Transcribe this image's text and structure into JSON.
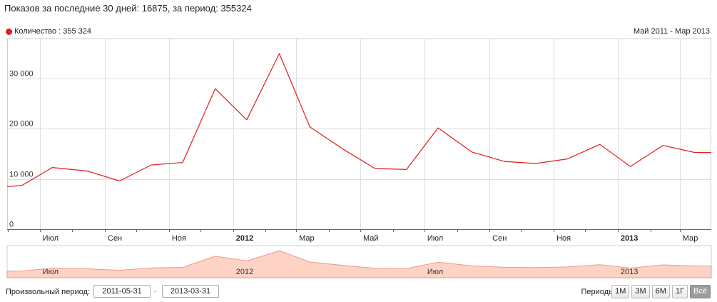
{
  "summary": "Показов за последние 30 дней: 16875, за период: 355324",
  "range_label": "Май 2011 - Мар 2013",
  "controls": {
    "custom_period_label": "Произвольный период:",
    "date_from": "2011-05-31",
    "date_separator": "-",
    "date_to": "2013-03-31",
    "periods_label": "Периоды:",
    "period_buttons": [
      "1М",
      "3М",
      "6М",
      "1Г",
      "Всё"
    ],
    "active_period": "Всё"
  },
  "chart_data": {
    "type": "line",
    "series": [
      {
        "name": "Количество : 355 324",
        "color": "#e21b1b",
        "x": [
          "2011-05-31",
          "2011-06-14",
          "2011-07-13",
          "2011-08-15",
          "2011-09-15",
          "2011-10-15",
          "2011-11-14",
          "2011-12-15",
          "2012-01-14",
          "2012-02-14",
          "2012-03-14",
          "2012-04-15",
          "2012-05-15",
          "2012-06-14",
          "2012-07-14",
          "2012-08-15",
          "2012-09-15",
          "2012-10-15",
          "2012-11-14",
          "2012-12-15",
          "2013-01-13",
          "2013-02-13",
          "2013-03-15",
          "2013-03-31"
        ],
        "values": [
          8500,
          8700,
          12300,
          11600,
          9600,
          12800,
          13300,
          28000,
          21800,
          35000,
          20400,
          15900,
          12100,
          11900,
          20200,
          15400,
          13500,
          13100,
          14000,
          16900,
          12500,
          16700,
          15300,
          15300
        ]
      }
    ],
    "y_ticks": [
      0,
      10000,
      20000,
      30000
    ],
    "y_tick_labels": [
      "0",
      "10 000",
      "20 000",
      "30 000"
    ],
    "ylim": [
      0,
      38000
    ],
    "xlim": [
      "2011-05-31",
      "2013-03-31"
    ],
    "x_ticks": [
      {
        "date": "2011-07-01",
        "label": "Июл",
        "bold": false
      },
      {
        "date": "2011-09-01",
        "label": "Сен",
        "bold": false
      },
      {
        "date": "2011-11-01",
        "label": "Ноя",
        "bold": false
      },
      {
        "date": "2012-01-01",
        "label": "2012",
        "bold": true
      },
      {
        "date": "2012-03-01",
        "label": "Мар",
        "bold": false
      },
      {
        "date": "2012-05-01",
        "label": "Май",
        "bold": false
      },
      {
        "date": "2012-07-01",
        "label": "Июл",
        "bold": false
      },
      {
        "date": "2012-09-01",
        "label": "Сен",
        "bold": false
      },
      {
        "date": "2012-11-01",
        "label": "Ноя",
        "bold": false
      },
      {
        "date": "2013-01-01",
        "label": "2013",
        "bold": true
      },
      {
        "date": "2013-03-01",
        "label": "Мар",
        "bold": false
      }
    ],
    "x_minor_ticks": [
      "2011-06-01",
      "2011-08-01",
      "2011-10-01",
      "2011-12-01",
      "2012-02-01",
      "2012-04-01",
      "2012-06-01",
      "2012-08-01",
      "2012-10-01",
      "2012-12-01",
      "2013-02-01"
    ],
    "navigator_labels": [
      {
        "date": "2011-07-01",
        "label": "Июл"
      },
      {
        "date": "2012-01-01",
        "label": "2012"
      },
      {
        "date": "2012-07-01",
        "label": "Июл"
      },
      {
        "date": "2013-01-01",
        "label": "2013"
      }
    ],
    "grid": true,
    "legend_position": "top-left",
    "navigator": true,
    "navigator_fill": "#ffd2c6",
    "navigator_line": "#e89a8a"
  }
}
